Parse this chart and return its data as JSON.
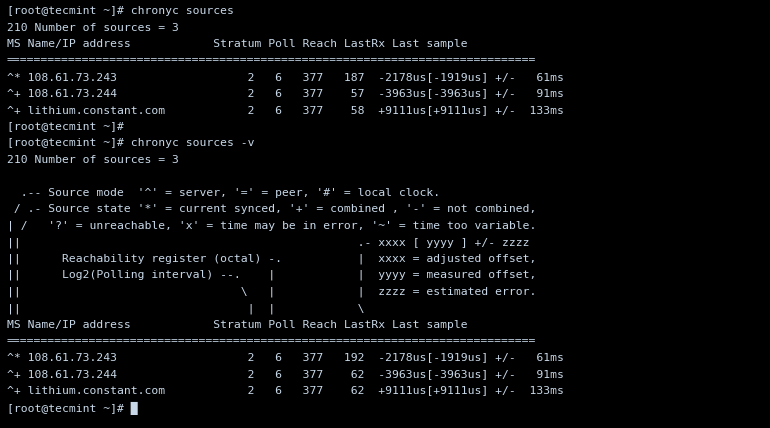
{
  "bg_color": "#000000",
  "text_color": "#c8d8e8",
  "font_family": "monospace",
  "font_size": 8.2,
  "figsize": [
    7.7,
    4.28
  ],
  "dpi": 100,
  "lines": [
    "[root@tecmint ~]# chronyc sources",
    "210 Number of sources = 3",
    "MS Name/IP address            Stratum Poll Reach LastRx Last sample",
    "=============================================================================",
    "^* 108.61.73.243                   2   6   377   187  -2178us[-1919us] +/-   61ms",
    "^+ 108.61.73.244                   2   6   377    57  -3963us[-3963us] +/-   91ms",
    "^+ lithium.constant.com            2   6   377    58  +9111us[+9111us] +/-  133ms",
    "[root@tecmint ~]#",
    "[root@tecmint ~]# chronyc sources -v",
    "210 Number of sources = 3",
    "",
    "  .-- Source mode  '^' = server, '=' = peer, '#' = local clock.",
    " / .- Source state '*' = current synced, '+' = combined , '-' = not combined,",
    "| /   '?' = unreachable, 'x' = time may be in error, '~' = time too variable.",
    "||                                                 .- xxxx [ yyyy ] +/- zzzz",
    "||      Reachability register (octal) -.           |  xxxx = adjusted offset,",
    "||      Log2(Polling interval) --.    |            |  yyyy = measured offset,",
    "||                                \\   |            |  zzzz = estimated error.",
    "||                                 |  |            \\",
    "MS Name/IP address            Stratum Poll Reach LastRx Last sample",
    "=============================================================================",
    "^* 108.61.73.243                   2   6   377   192  -2178us[-1919us] +/-   61ms",
    "^+ 108.61.73.244                   2   6   377    62  -3963us[-3963us] +/-   91ms",
    "^+ lithium.constant.com            2   6   377    62  +9111us[+9111us] +/-  133ms",
    "[root@tecmint ~]# █"
  ]
}
